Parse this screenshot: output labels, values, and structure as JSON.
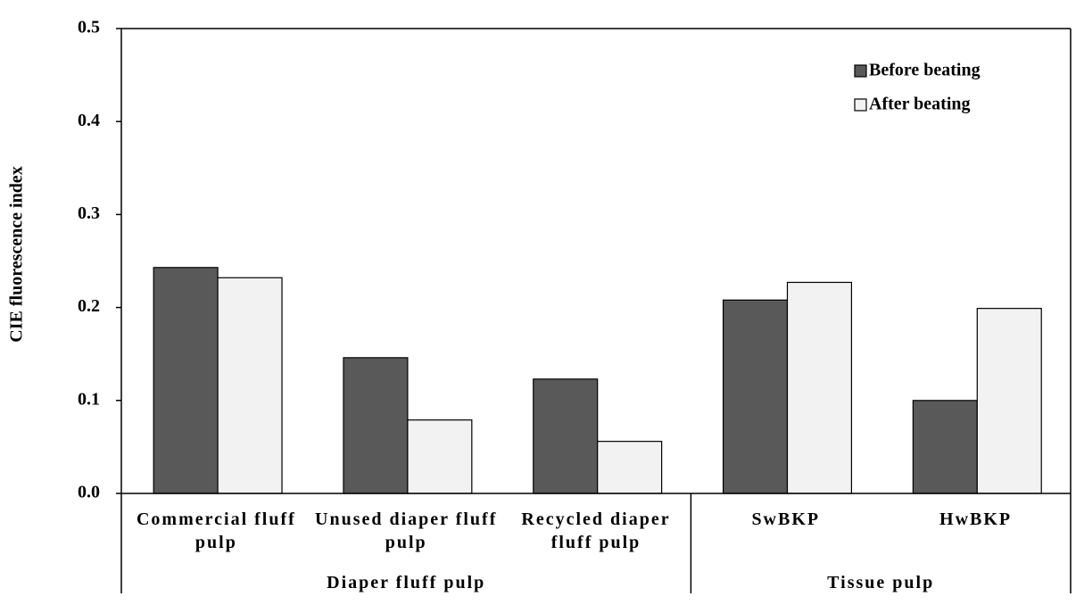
{
  "chart_data": {
    "type": "bar",
    "y_label": "CIE fluorescence index",
    "groups": [
      {
        "label": "Diaper fluff pulp",
        "categories": [
          "Commercial fluff pulp",
          "Unused diaper fluff pulp",
          "Recycled diaper fluff pulp"
        ]
      },
      {
        "label": "Tissue pulp",
        "categories": [
          "SwBKP",
          "HwBKP"
        ]
      }
    ],
    "series": [
      {
        "name": "Before beating",
        "color": "#595959",
        "values": [
          0.243,
          0.146,
          0.123,
          0.208,
          0.1
        ]
      },
      {
        "name": "After beating",
        "color": "#f2f2f2",
        "values": [
          0.232,
          0.079,
          0.056,
          0.227,
          0.199
        ]
      }
    ],
    "ylim": [
      0,
      0.5
    ],
    "yticks": [
      {
        "value": 0,
        "label": "0.0"
      },
      0.1,
      0.2,
      0.3,
      0.4,
      0.5
    ],
    "legend": "upper-right",
    "grid": false
  }
}
